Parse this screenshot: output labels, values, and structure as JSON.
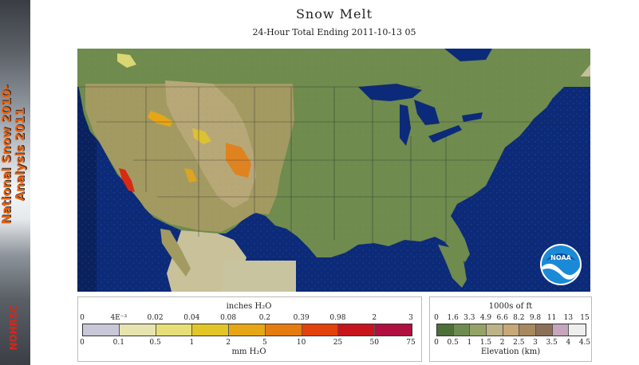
{
  "sidebar": {
    "title_line1": "National Snow 2010-",
    "title_line2": "Analysis 2011",
    "logo_text": "NOHRSC"
  },
  "map": {
    "title": "Snow Melt",
    "subtitle": "24-Hour Total Ending 2011-10-13 05",
    "logo_text": "NOAA"
  },
  "legend_melt": {
    "title_top": "inches H₂O",
    "title_bottom": "mm H₂O",
    "inch_labels": [
      "0",
      "4E⁻³",
      "0.02",
      "0.04",
      "0.08",
      "0.2",
      "0.39",
      "0.98",
      "2",
      "3"
    ],
    "mm_labels": [
      "0",
      "0.1",
      "0.5",
      "1",
      "2",
      "5",
      "10",
      "25",
      "50",
      "75"
    ],
    "colors": [
      "#c8c8d8",
      "#e8e4b0",
      "#e6df78",
      "#e2c628",
      "#e6a616",
      "#e57c10",
      "#e2420c",
      "#c8141c",
      "#b01040"
    ]
  },
  "legend_elev": {
    "title_top": "1000s of ft",
    "title_bottom": "Elevation (km)",
    "ft_labels": [
      "0",
      "1.6",
      "3.3",
      "4.9",
      "6.6",
      "8.2",
      "9.8",
      "11",
      "13",
      "15"
    ],
    "km_labels": [
      "0",
      "0.5",
      "1",
      "1.5",
      "2",
      "2.5",
      "3",
      "3.5",
      "4",
      "4.5"
    ],
    "colors": [
      "#4e6e3a",
      "#6e8c52",
      "#94a468",
      "#bcb486",
      "#c8a878",
      "#a8885e",
      "#8c7058",
      "#c6a6bc",
      "#eeeeee"
    ]
  }
}
